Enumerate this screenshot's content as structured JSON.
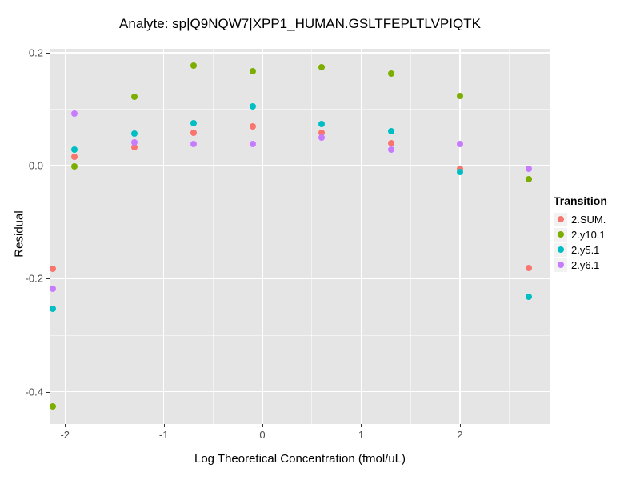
{
  "chart_data": {
    "type": "scatter",
    "title": "Analyte: sp|Q9NQW7|XPP1_HUMAN.GSLTFEPLTLVPIQTK",
    "xlabel": "Log Theoretical Concentration (fmol/uL)",
    "ylabel": "Residual",
    "xlim": [
      -2.156,
      2.917
    ],
    "ylim": [
      -0.457,
      0.207
    ],
    "grid": true,
    "panel_bg": "#E5E5E5",
    "grid_color": "#FFFFFF",
    "tick_color": "#333333",
    "tick_label_color": "#4D4D4D",
    "x_ticks": [
      {
        "value": -2,
        "label": "-2"
      },
      {
        "value": -1,
        "label": "-1"
      },
      {
        "value": 0,
        "label": "0"
      },
      {
        "value": 1,
        "label": "1"
      },
      {
        "value": 2,
        "label": "2"
      }
    ],
    "y_ticks": [
      {
        "value": 0.2,
        "label": "0.2"
      },
      {
        "value": 0.0,
        "label": "0.0"
      },
      {
        "value": -0.2,
        "label": "-0.2"
      },
      {
        "value": -0.4,
        "label": "-0.4"
      }
    ],
    "x_minor": [
      -1.5,
      -0.5,
      0.5,
      1.5,
      2.5
    ],
    "y_minor": [
      0.1,
      -0.1,
      -0.3
    ],
    "legend": {
      "title": "Transition",
      "position": "right"
    },
    "series": [
      {
        "name": "2.SUM.",
        "color": "#F8766D",
        "points": [
          [
            -2.125,
            -0.183
          ],
          [
            -1.903,
            0.016
          ],
          [
            -1.301,
            0.033
          ],
          [
            -0.699,
            0.058
          ],
          [
            -0.097,
            0.069
          ],
          [
            0.602,
            0.059
          ],
          [
            1.301,
            0.04
          ],
          [
            2.0,
            -0.005
          ],
          [
            2.699,
            -0.181
          ]
        ]
      },
      {
        "name": "2.y10.1",
        "color": "#7CAE00",
        "points": [
          [
            -2.125,
            -0.426
          ],
          [
            -1.903,
            -0.001
          ],
          [
            -1.301,
            0.122
          ],
          [
            -0.699,
            0.177
          ],
          [
            -0.097,
            0.168
          ],
          [
            0.602,
            0.174
          ],
          [
            1.301,
            0.163
          ],
          [
            2.0,
            0.123
          ],
          [
            2.699,
            -0.024
          ]
        ]
      },
      {
        "name": "2.y5.1",
        "color": "#00BFC4",
        "points": [
          [
            -2.125,
            -0.253
          ],
          [
            -1.903,
            0.029
          ],
          [
            -1.301,
            0.057
          ],
          [
            -0.699,
            0.075
          ],
          [
            -0.097,
            0.105
          ],
          [
            0.602,
            0.074
          ],
          [
            1.301,
            0.061
          ],
          [
            2.0,
            -0.011
          ],
          [
            2.699,
            -0.232
          ]
        ]
      },
      {
        "name": "2.y6.1",
        "color": "#C77CFF",
        "points": [
          [
            -2.125,
            -0.218
          ],
          [
            -1.903,
            0.093
          ],
          [
            -1.301,
            0.042
          ],
          [
            -0.699,
            0.038
          ],
          [
            -0.097,
            0.038
          ],
          [
            0.602,
            0.05
          ],
          [
            1.301,
            0.029
          ],
          [
            2.0,
            0.038
          ],
          [
            2.699,
            -0.005
          ]
        ]
      }
    ]
  }
}
